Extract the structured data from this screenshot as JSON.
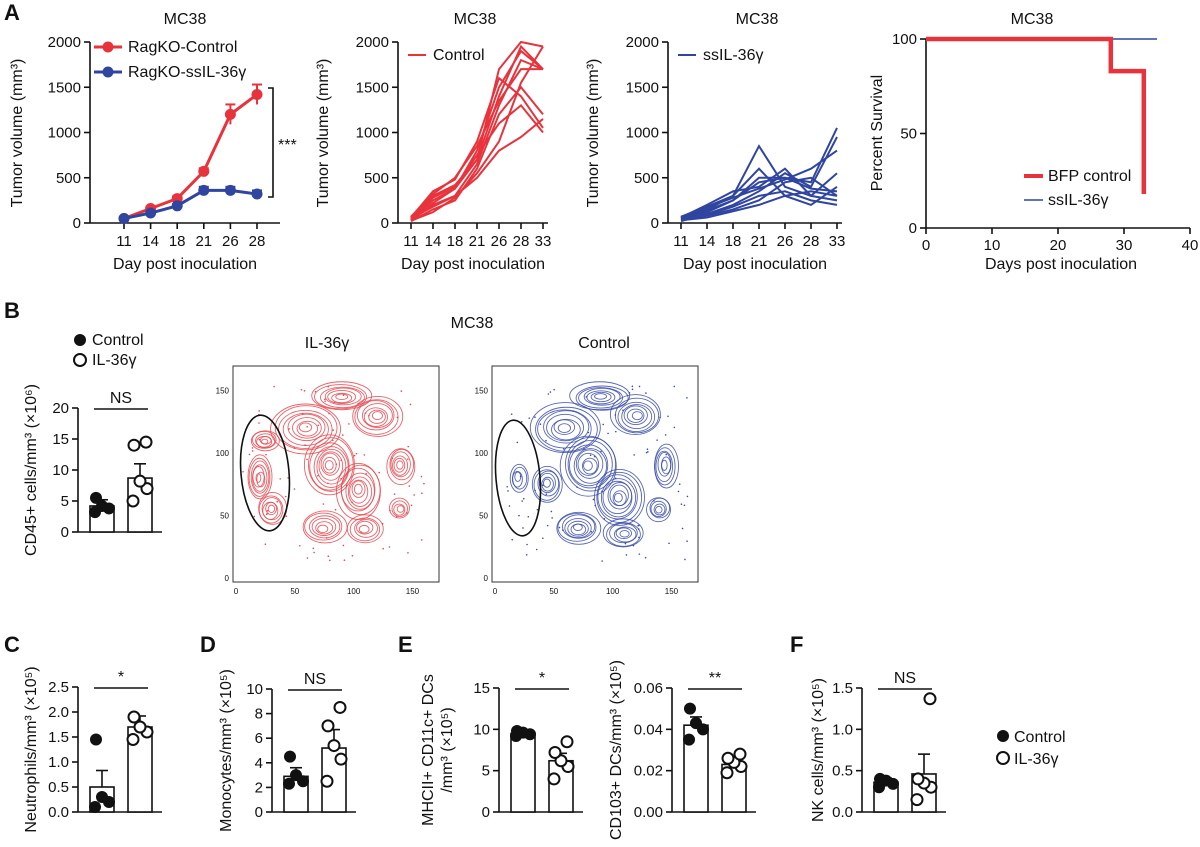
{
  "panels": {
    "A": "A",
    "B": "B",
    "C": "C",
    "D": "D",
    "E": "E",
    "F": "F"
  },
  "colors": {
    "red": "#e8333c",
    "blue": "#2f45a0",
    "flow_red": "#e6474f",
    "flow_blue": "#3b4ca8"
  },
  "legend_bf": {
    "control": "Control",
    "il36": "IL-36γ"
  },
  "chart_data": [
    {
      "id": "a1",
      "type": "line",
      "title": "MC38",
      "xlabel": "Day post inoculation",
      "ylabel": "Tumor volume (mm³)",
      "categories": [
        "11",
        "14",
        "18",
        "21",
        "26",
        "28"
      ],
      "ylim": [
        0,
        2000
      ],
      "yticks": [
        0,
        500,
        1000,
        1500,
        2000
      ],
      "annotation": "***",
      "series": [
        {
          "name": "RagKO-Control",
          "color": "#e8333c",
          "values": [
            50,
            160,
            270,
            570,
            1200,
            1420
          ],
          "err": [
            10,
            20,
            25,
            35,
            110,
            110
          ]
        },
        {
          "name": "RagKO-ssIL-36γ",
          "color": "#2f45a0",
          "values": [
            50,
            110,
            190,
            360,
            360,
            320
          ],
          "err": [
            10,
            15,
            20,
            40,
            40,
            40
          ]
        }
      ]
    },
    {
      "id": "a2",
      "type": "line",
      "title": "MC38",
      "xlabel": "Day post inoculation",
      "ylabel": "Tumor volume (mm³)",
      "categories": [
        "11",
        "14",
        "18",
        "21",
        "26",
        "28",
        "33"
      ],
      "ylim": [
        0,
        2000
      ],
      "yticks": [
        0,
        500,
        1000,
        1500,
        2000
      ],
      "legend": "Control",
      "color": "#e8333c",
      "series": [
        {
          "values": [
            50,
            300,
            420,
            700,
            1700,
            2000,
            1950
          ]
        },
        {
          "values": [
            40,
            250,
            380,
            800,
            1500,
            1900,
            1700
          ]
        },
        {
          "values": [
            30,
            200,
            300,
            650,
            1300,
            1800,
            1700
          ]
        },
        {
          "values": [
            60,
            350,
            480,
            900,
            1600,
            1400,
            1050
          ]
        },
        {
          "values": [
            20,
            150,
            250,
            600,
            1200,
            1500,
            1200
          ]
        },
        {
          "values": [
            40,
            280,
            400,
            750,
            1100,
            1300,
            1000
          ]
        },
        {
          "values": [
            30,
            220,
            380,
            700,
            1400,
            1950,
            1700
          ]
        },
        {
          "values": [
            50,
            180,
            300,
            500,
            800,
            950,
            1150
          ]
        },
        {
          "values": [
            70,
            320,
            500,
            850,
            1350,
            1700,
            1700
          ]
        },
        {
          "values": [
            25,
            120,
            280,
            550,
            900,
            1550,
            1950
          ]
        }
      ]
    },
    {
      "id": "a3",
      "type": "line",
      "title": "MC38",
      "xlabel": "Day post inoculation",
      "ylabel": "Tumor volume (mm³)",
      "categories": [
        "11",
        "14",
        "18",
        "21",
        "26",
        "28",
        "33"
      ],
      "ylim": [
        0,
        2000
      ],
      "yticks": [
        0,
        500,
        1000,
        1500,
        2000
      ],
      "legend": "ssIL-36γ",
      "color": "#2f45a0",
      "series": [
        {
          "values": [
            50,
            150,
            300,
            850,
            400,
            300,
            250
          ]
        },
        {
          "values": [
            40,
            120,
            250,
            500,
            500,
            450,
            1050
          ]
        },
        {
          "values": [
            60,
            200,
            350,
            400,
            600,
            300,
            550
          ]
        },
        {
          "values": [
            30,
            80,
            150,
            250,
            450,
            500,
            300
          ]
        },
        {
          "values": [
            70,
            180,
            300,
            600,
            300,
            200,
            400
          ]
        },
        {
          "values": [
            20,
            100,
            200,
            350,
            550,
            400,
            950
          ]
        },
        {
          "values": [
            50,
            140,
            250,
            450,
            500,
            380,
            350
          ]
        },
        {
          "values": [
            40,
            90,
            180,
            300,
            350,
            250,
            200
          ]
        },
        {
          "values": [
            30,
            60,
            130,
            200,
            300,
            350,
            300
          ]
        },
        {
          "values": [
            60,
            170,
            280,
            380,
            480,
            600,
            800
          ]
        }
      ]
    },
    {
      "id": "a4",
      "type": "line",
      "title": "MC38",
      "xlabel": "Days post inoculation",
      "ylabel": "Percent Survival",
      "xlim": [
        0,
        40
      ],
      "xticks": [
        0,
        10,
        20,
        30,
        40
      ],
      "ylim": [
        0,
        100
      ],
      "yticks": [
        0,
        50,
        100
      ],
      "series": [
        {
          "name": "BFP control",
          "color": "#e8333c",
          "x": [
            0,
            28,
            28,
            33,
            33
          ],
          "y": [
            100,
            100,
            83,
            83,
            18
          ]
        },
        {
          "name": "ssIL-36γ",
          "color": "#2f45a0",
          "x": [
            0,
            35
          ],
          "y": [
            100,
            100
          ]
        }
      ]
    },
    {
      "id": "b1",
      "type": "scatter",
      "title": "",
      "ylabel": "CD45+ cells/mm³ (×10⁶)",
      "ylim": [
        0,
        20
      ],
      "yticks": [
        0,
        5,
        10,
        15,
        20
      ],
      "annotation": "NS",
      "groups": [
        {
          "name": "Control",
          "mean": 4.2,
          "err": 1.0,
          "points": [
            3.2,
            3.8,
            4.2,
            5.5
          ]
        },
        {
          "name": "IL-36γ",
          "mean": 8.7,
          "err": 2.3,
          "points": [
            5.0,
            7.0,
            8.2,
            14.0,
            14.5
          ]
        }
      ]
    },
    {
      "id": "c",
      "type": "scatter",
      "ylabel": "Neutrophils/mm³ (×10⁵)",
      "ylim": [
        0,
        2.5
      ],
      "yticks": [
        "0.0",
        "0.5",
        "1.0",
        "1.5",
        "2.0",
        "2.5"
      ],
      "annotation": "*",
      "groups": [
        {
          "name": "Control",
          "mean": 0.5,
          "err": 0.33,
          "points": [
            0.1,
            0.2,
            0.3,
            1.45
          ]
        },
        {
          "name": "IL-36γ",
          "mean": 1.7,
          "err": 0.22,
          "points": [
            1.45,
            1.6,
            1.7,
            1.9
          ]
        }
      ]
    },
    {
      "id": "d",
      "type": "scatter",
      "ylabel": "Monocytes/mm³ (×10⁵)",
      "ylim": [
        0,
        10
      ],
      "yticks": [
        "0",
        "2",
        "4",
        "6",
        "8",
        "10"
      ],
      "annotation": "NS",
      "groups": [
        {
          "name": "Control",
          "mean": 2.9,
          "err": 0.7,
          "points": [
            2.3,
            2.5,
            3.0,
            4.5
          ]
        },
        {
          "name": "IL-36γ",
          "mean": 5.2,
          "err": 1.5,
          "points": [
            2.5,
            4.3,
            5.4,
            7.0,
            8.5
          ]
        }
      ]
    },
    {
      "id": "e1",
      "type": "scatter",
      "ylabel": "MHCII+ CD11c+ DCs /mm³ (×10⁵)",
      "ylim": [
        0,
        15
      ],
      "yticks": [
        "0",
        "5",
        "10",
        "15"
      ],
      "annotation": "*",
      "groups": [
        {
          "name": "Control",
          "mean": 9.5,
          "err": 0.25,
          "points": [
            9.2,
            9.4,
            9.6,
            9.8
          ]
        },
        {
          "name": "IL-36γ",
          "mean": 6.2,
          "err": 0.9,
          "points": [
            4.0,
            5.5,
            6.2,
            7.2,
            8.5
          ]
        }
      ]
    },
    {
      "id": "e2",
      "type": "scatter",
      "ylabel": "CD103+ DCs/mm³ (×10⁵)",
      "ylim": [
        0,
        0.06
      ],
      "yticks": [
        "0.00",
        "0.02",
        "0.04",
        "0.06"
      ],
      "annotation": "**",
      "groups": [
        {
          "name": "Control",
          "mean": 0.042,
          "err": 0.004,
          "points": [
            0.035,
            0.04,
            0.043,
            0.05
          ]
        },
        {
          "name": "IL-36γ",
          "mean": 0.023,
          "err": 0.002,
          "points": [
            0.019,
            0.022,
            0.024,
            0.026,
            0.028
          ]
        }
      ]
    },
    {
      "id": "f",
      "type": "scatter",
      "ylabel": "NK cells/mm³ (×10⁵)",
      "ylim": [
        0,
        1.5
      ],
      "yticks": [
        "0.0",
        "0.5",
        "1.0",
        "1.5"
      ],
      "annotation": "NS",
      "groups": [
        {
          "name": "Control",
          "mean": 0.36,
          "err": 0.05,
          "points": [
            0.3,
            0.34,
            0.38,
            0.4
          ]
        },
        {
          "name": "IL-36γ",
          "mean": 0.46,
          "err": 0.24,
          "points": [
            0.15,
            0.3,
            0.35,
            0.4,
            1.37
          ]
        }
      ]
    }
  ],
  "flow": {
    "title": "MC38",
    "left_title": "IL-36γ",
    "right_title": "Control",
    "xticks": [
      "0",
      "50",
      "100",
      "150"
    ],
    "yticks": [
      "0",
      "50",
      "100",
      "150"
    ]
  },
  "legend_ef": {
    "control": "Control",
    "il36": "IL-36γ"
  }
}
